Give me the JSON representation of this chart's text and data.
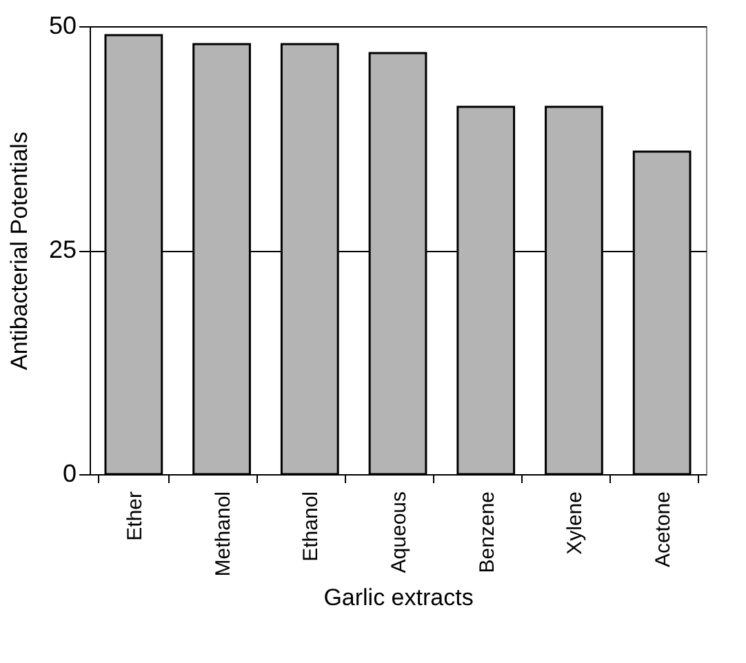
{
  "chart_data": {
    "type": "bar",
    "xlabel": "Garlic extracts",
    "ylabel": "Antibacterial Potentials",
    "categories": [
      "Ether",
      "Methanol",
      "Ethanol",
      "Aqueous",
      "Benzene",
      "Xylene",
      "Acetone"
    ],
    "values": [
      49,
      48,
      48,
      47,
      41,
      41,
      36
    ],
    "color": "#b4b4b4",
    "ylim": [
      0,
      50
    ],
    "yticks": [
      0,
      25,
      50
    ],
    "grid": "y"
  }
}
